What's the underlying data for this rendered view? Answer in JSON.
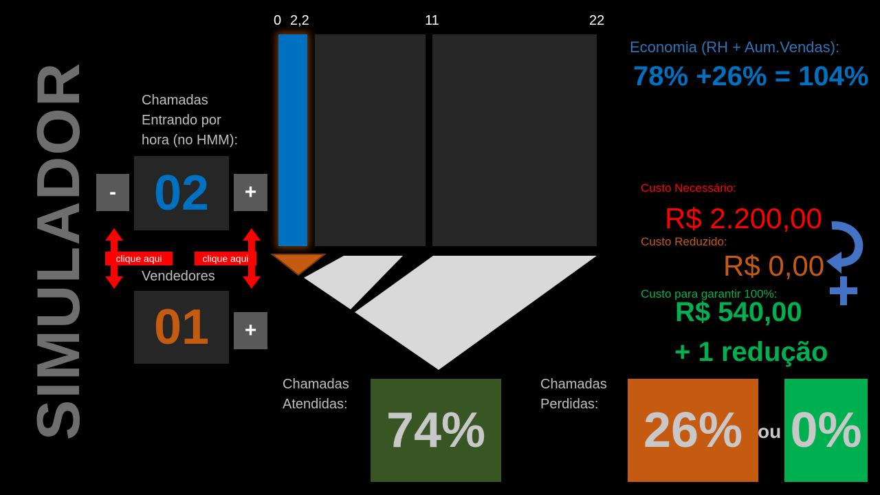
{
  "title": "SIMULADOR",
  "calls": {
    "label_line1": "Chamadas",
    "label_line2": "Entrando por",
    "label_line3": "hora (no HMM):",
    "value": "02",
    "minus_label": "-",
    "plus_label": "+"
  },
  "sellers": {
    "label": "Vendedores",
    "value": "01",
    "plus_label": "+"
  },
  "hint_label": "clique aqui",
  "scale": {
    "t0": "0",
    "t1": "2,2",
    "t2": "11",
    "t3": "22"
  },
  "bar_level": 0.1,
  "economy": {
    "label": "Economia (RH + Aum.Vendas):",
    "value": "78% +26% = 104%"
  },
  "costs": {
    "needed_label": "Custo Necessário:",
    "needed_value": "R$ 2.200,00",
    "reduced_label": "Custo Reduzido:",
    "reduced_value": "R$ 0,00",
    "guarantee_label": "Custo para garantir 100%:",
    "guarantee_value": "R$ 540,00",
    "reduction_note": "+ 1 redução"
  },
  "answered": {
    "label_line1": "Chamadas",
    "label_line2": "Atendidas:",
    "percent": "74%"
  },
  "lost": {
    "label_line1": "Chamadas",
    "label_line2": "Perdidas:",
    "percent": "26%",
    "or_label": "ou",
    "alt_percent": "0%"
  },
  "colors": {
    "blue": "#0070c0",
    "orange": "#c55a11",
    "green": "#00b050",
    "dark_green": "#375623",
    "red": "#ff0000",
    "economy_label": "#2e75b6"
  }
}
